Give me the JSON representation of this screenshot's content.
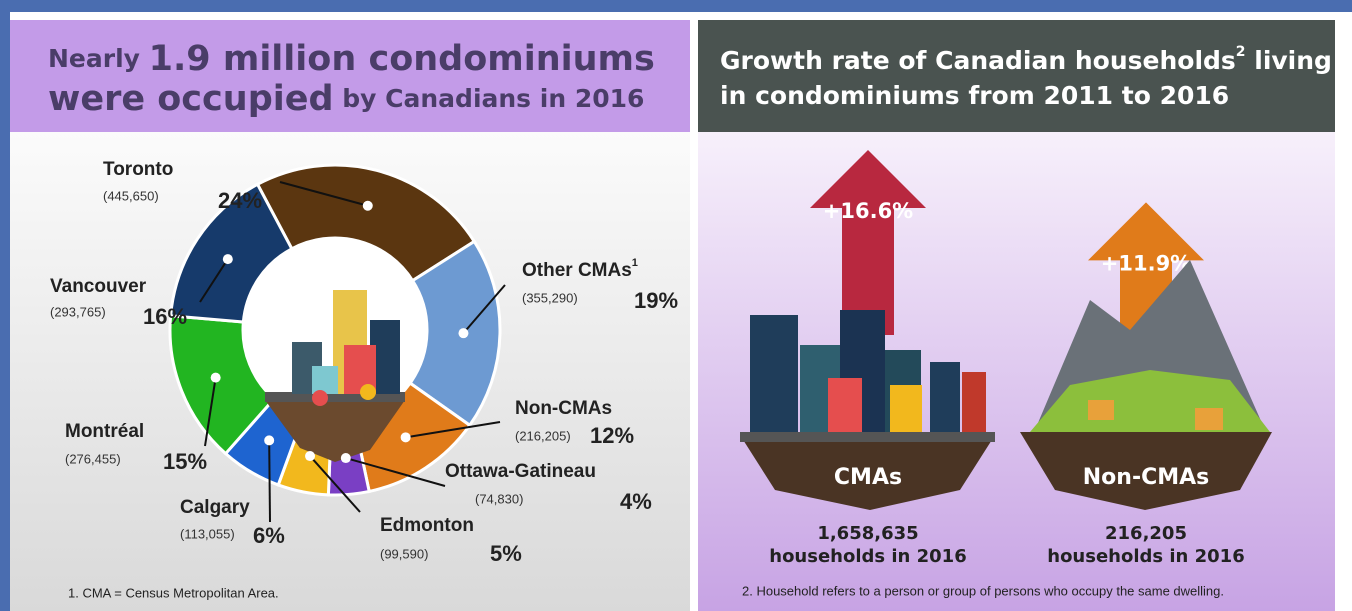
{
  "chart_data": [
    {
      "type": "donut",
      "title_runs": [
        "Nearly ",
        "1.9 million condominiums",
        "were occupied",
        " by Canadians in 2016"
      ],
      "categories": [
        "Toronto",
        "Other CMAs",
        "Non-CMAs",
        "Ottawa-Gatineau",
        "Edmonton",
        "Calgary",
        "Montréal",
        "Vancouver"
      ],
      "category_note": {
        "index": 1,
        "label": "1"
      },
      "values": [
        24,
        19,
        12,
        4,
        5,
        6,
        15,
        16
      ],
      "value_labels": [
        "24%",
        "19%",
        "12%",
        "4%",
        "5%",
        "6%",
        "15%",
        "16%"
      ],
      "counts": [
        445650,
        355290,
        216205,
        74830,
        99590,
        113055,
        276455,
        293765
      ],
      "count_labels": [
        "(445,650)",
        "(355,290)",
        "(216,205)",
        "(74,830)",
        "(99,590)",
        "(113,055)",
        "(276,455)",
        "(293,765)"
      ],
      "colors": [
        "#5b3610",
        "#6d9ad2",
        "#e07b1a",
        "#7a3fc4",
        "#f2b81d",
        "#1e64d0",
        "#22b521",
        "#163a6b"
      ],
      "footnote": "1. CMA = Census Metropolitan Area."
    },
    {
      "type": "arrow",
      "title_runs": [
        "Growth rate of Canadian households",
        "2",
        " living",
        "in condominiums from 2011 to 2016"
      ],
      "categories": [
        "CMAs",
        "Non-CMAs"
      ],
      "values": [
        16.6,
        11.9
      ],
      "value_labels": [
        "+16.6%",
        "+11.9%"
      ],
      "colors": [
        "#b8283f",
        "#e07b1a"
      ],
      "households": [
        1658635,
        216205
      ],
      "household_labels": [
        "1,658,635",
        "216,205"
      ],
      "household_caption": "households in 2016",
      "footnote": "2. Household refers to a person or group of persons who occupy the same dwelling."
    }
  ]
}
